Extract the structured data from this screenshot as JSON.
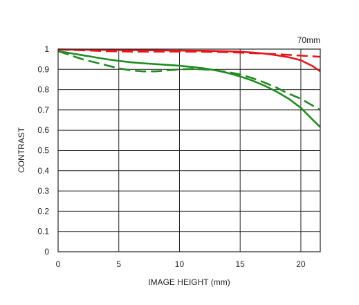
{
  "chart_data": {
    "type": "line",
    "annotation": "70mm",
    "xlabel": "IMAGE HEIGHT (mm)",
    "ylabel": "CONTRAST",
    "xlim": [
      0,
      21.6
    ],
    "ylim": [
      0,
      1
    ],
    "xticks": [
      0,
      5,
      10,
      15,
      20
    ],
    "xtick_labels": [
      "0",
      "5",
      "10",
      "15",
      "20"
    ],
    "yticks": [
      0,
      0.1,
      0.2,
      0.3,
      0.4,
      0.5,
      0.6,
      0.7,
      0.8,
      0.9,
      1
    ],
    "ytick_labels": [
      "0",
      "0.1",
      "0.2",
      "0.3",
      "0.4",
      "0.5",
      "0.6",
      "0.7",
      "0.8",
      "0.9",
      "1"
    ],
    "grid": true,
    "series": [
      {
        "color": "#e8141b",
        "dash": "solid",
        "x": [
          0,
          2,
          4,
          6,
          8,
          10,
          12,
          14,
          15,
          16,
          17,
          18,
          19,
          20,
          21,
          21.6
        ],
        "y": [
          0.998,
          0.997,
          0.996,
          0.995,
          0.994,
          0.993,
          0.992,
          0.989,
          0.987,
          0.983,
          0.978,
          0.97,
          0.96,
          0.945,
          0.915,
          0.89
        ]
      },
      {
        "color": "#e8141b",
        "dash": "dashed",
        "x": [
          0,
          2,
          4,
          6,
          8,
          10,
          12,
          14,
          16,
          18,
          20,
          21.6
        ],
        "y": [
          0.998,
          0.994,
          0.99,
          0.988,
          0.988,
          0.988,
          0.987,
          0.985,
          0.98,
          0.975,
          0.968,
          0.962
        ]
      },
      {
        "color": "#1e8c1e",
        "dash": "solid",
        "x": [
          0,
          1,
          2,
          3,
          4,
          5,
          6,
          7,
          8,
          9,
          10,
          11,
          12,
          13,
          14,
          15,
          16,
          17,
          18,
          19,
          20,
          21,
          21.6
        ],
        "y": [
          0.99,
          0.98,
          0.97,
          0.96,
          0.95,
          0.942,
          0.935,
          0.93,
          0.926,
          0.922,
          0.918,
          0.912,
          0.905,
          0.895,
          0.882,
          0.865,
          0.845,
          0.82,
          0.79,
          0.755,
          0.71,
          0.65,
          0.615
        ]
      },
      {
        "color": "#1e8c1e",
        "dash": "dashed",
        "x": [
          0,
          1,
          2,
          3,
          4,
          5,
          6,
          7,
          8,
          9,
          10,
          11,
          12,
          13,
          14,
          15,
          16,
          17,
          18,
          19,
          20,
          21,
          21.6
        ],
        "y": [
          0.99,
          0.97,
          0.95,
          0.935,
          0.92,
          0.905,
          0.895,
          0.89,
          0.89,
          0.895,
          0.9,
          0.902,
          0.9,
          0.895,
          0.887,
          0.875,
          0.857,
          0.835,
          0.81,
          0.78,
          0.755,
          0.72,
          0.7
        ]
      }
    ]
  }
}
